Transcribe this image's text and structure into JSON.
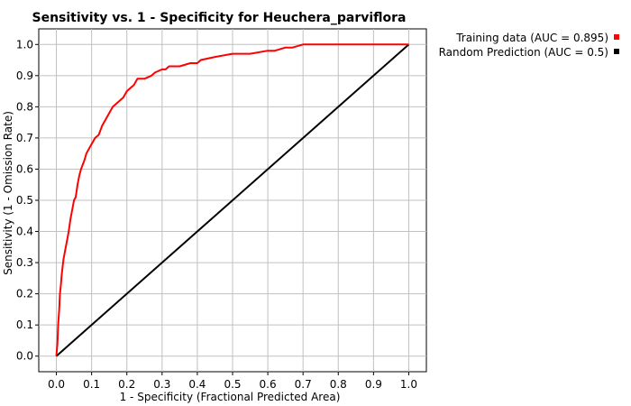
{
  "chart_data": {
    "type": "line",
    "title": "Sensitivity vs. 1 - Specificity for Heuchera_parviflora",
    "xlabel": "1 - Specificity  (Fractional Predicted Area)",
    "ylabel": "Sensitivity  (1 - Omission Rate)",
    "xlim": [
      -0.05,
      1.05
    ],
    "ylim": [
      -0.05,
      1.05
    ],
    "xticks": [
      0.0,
      0.1,
      0.2,
      0.3,
      0.4,
      0.5,
      0.6,
      0.7,
      0.8,
      0.9,
      1.0
    ],
    "yticks": [
      0.0,
      0.1,
      0.2,
      0.3,
      0.4,
      0.5,
      0.6,
      0.7,
      0.8,
      0.9,
      1.0
    ],
    "tick_labels_x": [
      "0.0",
      "0.1",
      "0.2",
      "0.3",
      "0.4",
      "0.5",
      "0.6",
      "0.7",
      "0.8",
      "0.9",
      "1.0"
    ],
    "tick_labels_y": [
      "0.0",
      "0.1",
      "0.2",
      "0.3",
      "0.4",
      "0.5",
      "0.6",
      "0.7",
      "0.8",
      "0.9",
      "1.0"
    ],
    "grid": true,
    "legend_position": "top-right, outside plot",
    "series": [
      {
        "name": "Training data (AUC = 0.895)",
        "color": "#ff0000",
        "x": [
          0.0,
          0.003,
          0.005,
          0.008,
          0.01,
          0.013,
          0.015,
          0.018,
          0.02,
          0.025,
          0.03,
          0.035,
          0.04,
          0.05,
          0.055,
          0.06,
          0.065,
          0.07,
          0.08,
          0.085,
          0.09,
          0.1,
          0.11,
          0.12,
          0.13,
          0.14,
          0.15,
          0.16,
          0.17,
          0.18,
          0.19,
          0.2,
          0.21,
          0.22,
          0.23,
          0.24,
          0.25,
          0.27,
          0.28,
          0.3,
          0.31,
          0.32,
          0.35,
          0.38,
          0.4,
          0.41,
          0.45,
          0.5,
          0.55,
          0.6,
          0.62,
          0.65,
          0.67,
          0.7,
          0.8,
          0.9,
          1.0
        ],
        "y": [
          0.0,
          0.04,
          0.1,
          0.15,
          0.2,
          0.23,
          0.26,
          0.29,
          0.31,
          0.34,
          0.37,
          0.4,
          0.44,
          0.5,
          0.51,
          0.55,
          0.58,
          0.6,
          0.63,
          0.65,
          0.66,
          0.68,
          0.7,
          0.71,
          0.74,
          0.76,
          0.78,
          0.8,
          0.81,
          0.82,
          0.83,
          0.85,
          0.86,
          0.87,
          0.89,
          0.89,
          0.89,
          0.9,
          0.91,
          0.92,
          0.92,
          0.93,
          0.93,
          0.94,
          0.94,
          0.95,
          0.96,
          0.97,
          0.97,
          0.98,
          0.98,
          0.99,
          0.99,
          1.0,
          1.0,
          1.0,
          1.0
        ]
      },
      {
        "name": "Random Prediction (AUC = 0.5)",
        "color": "#000000",
        "x": [
          0.0,
          1.0
        ],
        "y": [
          0.0,
          1.0
        ]
      }
    ]
  }
}
